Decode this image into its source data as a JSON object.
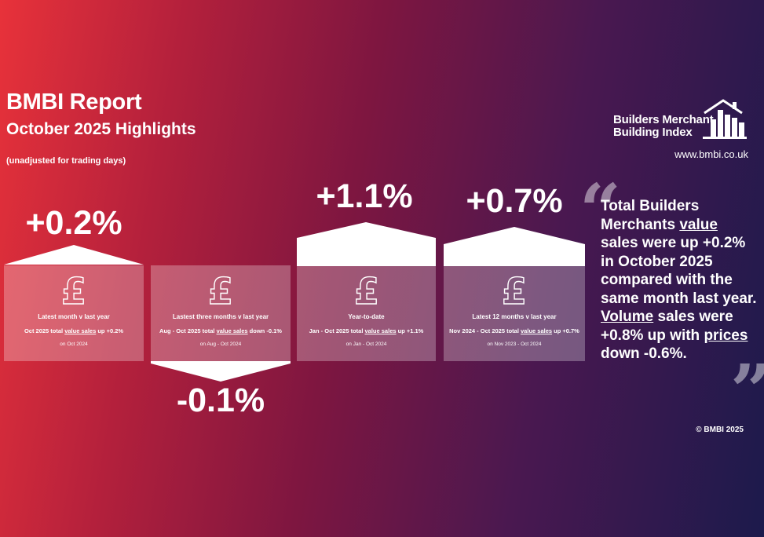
{
  "header": {
    "title": "BMBI Report",
    "subtitle": "October 2025 Highlights",
    "note": "(unadjusted for trading days)"
  },
  "brand": {
    "logo_line1": "Builders Merchant",
    "logo_line2": "Building Index",
    "url": "www.bmbi.co.uk",
    "logo_icon": "house-buildings-icon"
  },
  "cards": [
    {
      "change": "+0.2%",
      "direction": "up",
      "title": "Latest month v last year",
      "desc_prefix": "Oct 2025 total ",
      "desc_link": "value sales",
      "desc_suffix": " up +0.2%",
      "comparison": "on Oct 2024"
    },
    {
      "change": "-0.1%",
      "direction": "down",
      "title": "Lastest three months v last year",
      "desc_prefix": "Aug - Oct 2025 total ",
      "desc_link": "value sales",
      "desc_suffix": " down -0.1%",
      "comparison": "on Aug - Oct 2024"
    },
    {
      "change": "+1.1%",
      "direction": "up",
      "title": "Year-to-date",
      "desc_prefix": "Jan - Oct 2025 total ",
      "desc_link": "value sales",
      "desc_suffix": " up +1.1%",
      "comparison": "on Jan - Oct 2024"
    },
    {
      "change": "+0.7%",
      "direction": "up",
      "title": "Latest 12 months v last year",
      "desc_prefix": "Nov 2024 - Oct 2025 total ",
      "desc_link": "value sales",
      "desc_suffix": " up +0.7%",
      "comparison": "on Nov 2023 - Oct 2024"
    }
  ],
  "summary": {
    "open_quote": "“",
    "close_quote": "”",
    "p1": "Total Builders Merchants ",
    "w1": "value",
    "p2": " sales were up +0.2% in October 2025 compared with the same month last year. ",
    "w2": "Volume",
    "p3": " sales were +0.8% up with ",
    "w3": "prices",
    "p4": " down -0.6%."
  },
  "footer": {
    "copyright": "© BMBI 2025"
  },
  "colors": {
    "gradient_start": "#e8323a",
    "gradient_end": "#1c1a4c",
    "card_fill": "rgba(255,255,255,0.28)"
  }
}
